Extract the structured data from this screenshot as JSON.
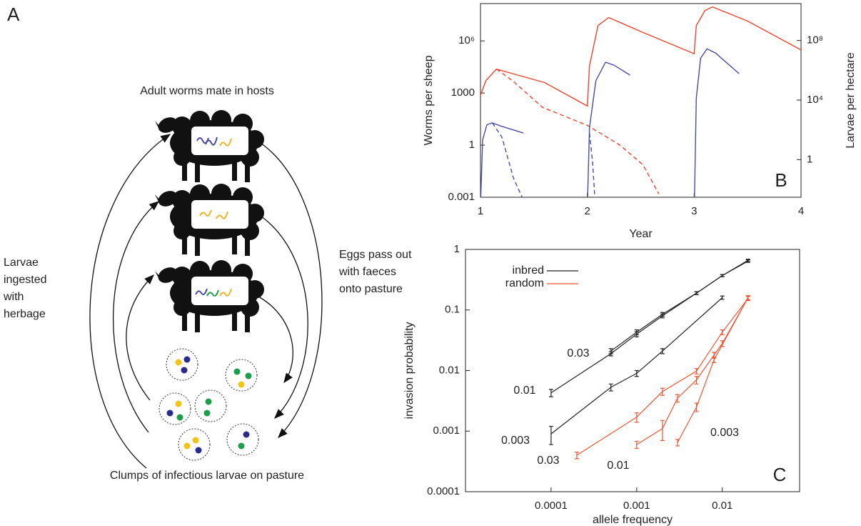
{
  "diagram": {
    "label": "A",
    "top": "Adult worms mate in hosts",
    "left": [
      "Larvae",
      "ingested",
      "with",
      "herbage"
    ],
    "right": [
      "Eggs pass out",
      "with faeces",
      "onto pasture"
    ],
    "bottom": "Clumps of infectious larvae on pasture"
  },
  "chart_data": [
    {
      "type": "line",
      "panel": "B",
      "ylabel": "Worms per sheep",
      "y2label": "Larvae per hectare",
      "xlabel": "Year",
      "xlim": [
        1,
        4
      ],
      "xticks": [
        1,
        2,
        3,
        4
      ],
      "ylim": [
        0.001,
        140000000
      ],
      "yticks": [
        0.001,
        1,
        1000,
        {
          "value": 1000000,
          "label": "10⁶"
        }
      ],
      "y2lim": [
        0.003,
        30000000000
      ],
      "y2ticks": [
        1,
        {
          "value": 10000,
          "label": "10⁴"
        },
        {
          "value": 100000000,
          "label": "10⁸"
        }
      ],
      "log_y": true,
      "series": [
        {
          "color": "#e8452f",
          "axis": "y2",
          "dash": false,
          "x": [
            1,
            1.05,
            1.15,
            1.3,
            1.6,
            2,
            2.02,
            2.1,
            2.2,
            2.5,
            3,
            3.02,
            3.1,
            3.17,
            3.5,
            4
          ],
          "values": [
            20000,
            200000,
            1200000,
            600000,
            150000,
            4000,
            2000000,
            1000000000,
            3500000000,
            400000000,
            13000000,
            1000000000,
            10000000000,
            18000000000,
            2000000000,
            23000000
          ]
        },
        {
          "color": "#e8452f",
          "axis": "y2",
          "dash": true,
          "x": [
            1.15,
            1.3,
            1.58,
            2,
            2.3,
            2.52,
            2.67
          ],
          "values": [
            1200000,
            200000,
            3300,
            200,
            10,
            0.46,
            0.005
          ]
        },
        {
          "color": "#4b4ba6",
          "axis": "y",
          "dash": false,
          "x": [
            1.003,
            1.02,
            1.06,
            1.11,
            1.2,
            1.4,
            null,
            2.003,
            2.02,
            2.08,
            2.17,
            2.25,
            2.4,
            null,
            3.003,
            3.02,
            3.06,
            3.12,
            3.2,
            3.42
          ],
          "values": [
            0.001,
            2,
            15,
            19,
            12,
            5,
            null,
            0.001,
            10,
            5000,
            59000,
            40000,
            10700,
            null,
            0.001,
            500,
            100000,
            350000,
            200000,
            13000
          ]
        },
        {
          "color": "#4b4ba6",
          "axis": "y",
          "dash": true,
          "x": [
            1.11,
            1.2,
            1.31,
            1.39,
            null,
            2.02,
            2.05,
            2.07
          ],
          "values": [
            19,
            3,
            0.012,
            0.001,
            null,
            5,
            0.1,
            0.001
          ]
        }
      ]
    },
    {
      "type": "errorbar",
      "panel": "C",
      "ylabel": "invasion probability",
      "xlabel": "allele frequency",
      "xlim": [
        1e-05,
        0.08
      ],
      "xticks": [
        0.0001,
        0.001,
        0.01
      ],
      "ylim": [
        0.0001,
        1
      ],
      "yticks": [
        0.0001,
        0.001,
        0.01,
        0.1,
        1
      ],
      "log_x": true,
      "log_y": true,
      "legend_position": "upper-left",
      "legend": [
        {
          "name": "inbred",
          "color": "#222222"
        },
        {
          "name": "random",
          "color": "#ee5533"
        }
      ],
      "series": [
        {
          "label": "0.03",
          "color": "#222222",
          "x": [
            0.0005,
            0.001,
            0.002,
            0.005,
            0.01,
            0.02
          ],
          "values": [
            0.021,
            0.043,
            0.085,
            0.19,
            0.37,
            0.66
          ],
          "errors": [
            0.002,
            0.004,
            0.006,
            0.01,
            0.015,
            0.03
          ]
        },
        {
          "label": "0.01",
          "color": "#222222",
          "x": [
            0.0001,
            0.0005,
            0.001,
            0.002,
            0.005,
            0.01,
            0.02
          ],
          "values": [
            0.0043,
            0.019,
            0.04,
            0.08,
            0.19,
            0.37,
            0.64
          ],
          "errors": [
            0.0006,
            0.0015,
            0.004,
            0.006,
            0.01,
            0.015,
            0.03
          ]
        },
        {
          "label": "0.003",
          "color": "#222222",
          "x": [
            0.0001,
            0.0005,
            0.001,
            0.002,
            0.01
          ],
          "values": [
            0.0009,
            0.0053,
            0.009,
            0.021,
            0.16
          ],
          "errors": [
            0.0003,
            0.0007,
            0.001,
            0.002,
            0.01
          ]
        },
        {
          "label": "0.03",
          "color": "#ee5533",
          "x": [
            0.0002,
            0.001,
            0.002,
            0.005,
            0.01,
            0.02
          ],
          "values": [
            0.0004,
            0.0017,
            0.0045,
            0.0098,
            0.043,
            0.155
          ],
          "errors": [
            5e-05,
            0.0003,
            0.0006,
            0.001,
            0.004,
            0.012
          ]
        },
        {
          "label": "0.01",
          "color": "#ee5533",
          "x": [
            0.001,
            0.002,
            0.003,
            0.005,
            0.008,
            0.01,
            0.02
          ],
          "values": [
            0.0006,
            0.0011,
            0.0035,
            0.007,
            0.018,
            0.028,
            0.16
          ],
          "errors": [
            8e-05,
            0.0004,
            0.0005,
            0.001,
            0.002,
            0.003,
            0.012
          ]
        },
        {
          "label": "0.003",
          "color": "#ee5533",
          "x": [
            0.003,
            0.005,
            0.008,
            0.02
          ],
          "values": [
            0.00065,
            0.0025,
            0.015,
            0.16
          ],
          "errors": [
            8e-05,
            0.0004,
            0.0015,
            0.012
          ]
        }
      ]
    }
  ]
}
